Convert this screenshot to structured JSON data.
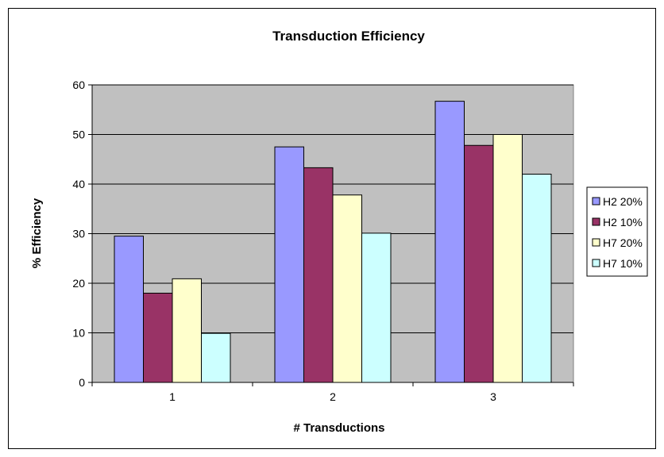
{
  "chart_data": {
    "type": "bar",
    "title": "Transduction Efficiency",
    "xlabel": "# Transductions",
    "ylabel": "% Efficiency",
    "categories": [
      "1",
      "2",
      "3"
    ],
    "ylim": [
      0,
      60
    ],
    "yticks": [
      0,
      10,
      20,
      30,
      40,
      50,
      60
    ],
    "grid": true,
    "legend_position": "right",
    "plot_background": "#c0c0c0",
    "series": [
      {
        "name": "H2 20%",
        "color": "#9999ff",
        "values": [
          29.5,
          47.5,
          56.7
        ]
      },
      {
        "name": "H2 10%",
        "color": "#993366",
        "values": [
          18,
          43.3,
          47.8
        ]
      },
      {
        "name": "H7 20%",
        "color": "#ffffcc",
        "values": [
          20.9,
          37.8,
          50
        ]
      },
      {
        "name": "H7 10%",
        "color": "#ccffff",
        "values": [
          9.9,
          30.1,
          42
        ]
      }
    ]
  }
}
